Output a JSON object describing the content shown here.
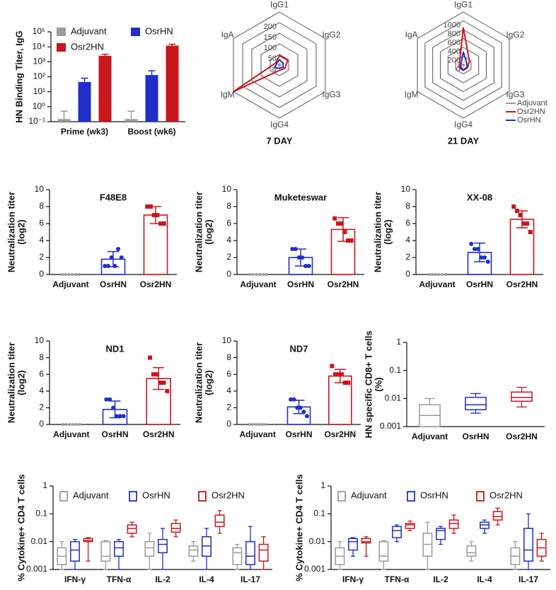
{
  "chart_data": [
    {
      "type": "bar",
      "log_scale": true,
      "ylabel": [
        "HN Binding Titer, IgG"
      ],
      "categories": [
        "Prime (wk3)",
        "Boost (wk6)"
      ],
      "legend": "upper left",
      "series": [
        {
          "name": "Adjuvant",
          "color": "#9a9a9a",
          "values": [
            0.15,
            0.15
          ],
          "errors": [
            0.35,
            0.35
          ]
        },
        {
          "name": "OsrHN",
          "color": "#1f2fc7",
          "values": [
            45,
            130
          ],
          "errors": [
            35,
            120
          ]
        },
        {
          "name": "Osr2HN",
          "color": "#c8161d",
          "values": [
            2500,
            12000
          ],
          "errors": [
            700,
            3000
          ]
        }
      ],
      "ylim": [
        0.1,
        100000
      ],
      "yticks": [
        {
          "value": 0.1,
          "label": "10⁻¹"
        },
        {
          "value": 1,
          "label": "10⁰"
        },
        {
          "value": 10,
          "label": "10¹"
        },
        {
          "value": 100,
          "label": "10²"
        },
        {
          "value": 1000,
          "label": "10³"
        },
        {
          "value": 10000,
          "label": "10⁴"
        },
        {
          "value": 100000,
          "label": "10⁵"
        }
      ]
    },
    {
      "type": "radar",
      "title": "7 DAY",
      "axes": [
        "IgG1",
        "IgG2",
        "IgG3",
        "IgG4",
        "IgM",
        "IgA"
      ],
      "rlim": [
        0,
        250
      ],
      "rticks": [
        0,
        50,
        100,
        150,
        200
      ],
      "series": [
        {
          "name": "Adjuvant",
          "color": "#9a9a9a",
          "values": [
            5,
            5,
            5,
            5,
            5,
            5
          ]
        },
        {
          "name": "Osr2HN",
          "color": "#c8161d",
          "values": [
            45,
            45,
            30,
            25,
            250,
            20
          ]
        },
        {
          "name": "OsrHN",
          "color": "#1f2fc7",
          "values": [
            25,
            20,
            20,
            15,
            25,
            15
          ]
        }
      ]
    },
    {
      "type": "radar",
      "title": "21 DAY",
      "axes": [
        "IgG1",
        "IgG2",
        "IgG3",
        "IgG4",
        "IgM",
        "IgA"
      ],
      "rlim": [
        0,
        1200
      ],
      "rticks": [
        0,
        200,
        400,
        600,
        800,
        1000
      ],
      "legend": "lower right",
      "series": [
        {
          "name": "Adjuvant",
          "color": "#9a9a9a",
          "values": [
            20,
            20,
            20,
            20,
            20,
            20
          ]
        },
        {
          "name": "Osr2HN",
          "color": "#c8161d",
          "values": [
            850,
            160,
            110,
            120,
            110,
            100
          ]
        },
        {
          "name": "OsrHN",
          "color": "#1f2fc7",
          "values": [
            300,
            90,
            100,
            110,
            70,
            60
          ]
        }
      ]
    },
    {
      "type": "bar_dots",
      "title": "F48E8",
      "ylabel": [
        "Neutralization titer",
        "(log2)"
      ],
      "categories": [
        "Adjuvant",
        "OsrHN",
        "Osr2HN"
      ],
      "colors": [
        "#9a9a9a",
        "#1f2fc7",
        "#c8161d"
      ],
      "markers": [
        "circle",
        "circle",
        "square"
      ],
      "values": [
        0,
        1.8,
        7
      ],
      "errors": [
        0,
        0.9,
        1
      ],
      "points": [
        [
          0,
          0,
          0,
          0,
          0,
          0
        ],
        [
          1,
          1,
          2,
          1,
          3,
          2
        ],
        [
          8,
          8,
          7,
          7,
          6,
          6
        ]
      ],
      "ylim": [
        0,
        10
      ],
      "yticks": [
        0,
        2,
        4,
        6,
        8,
        10
      ]
    },
    {
      "type": "bar_dots",
      "title": "Muketeswar",
      "ylabel": [
        "Neutralization titer",
        "(log2)"
      ],
      "categories": [
        "Adjuvant",
        "OsrHN",
        "Osr2HN"
      ],
      "colors": [
        "#9a9a9a",
        "#1f2fc7",
        "#c8161d"
      ],
      "markers": [
        "circle",
        "circle",
        "square"
      ],
      "values": [
        0,
        2,
        5.3
      ],
      "errors": [
        0,
        1,
        1.4
      ],
      "points": [
        [
          0,
          0,
          0,
          0,
          0,
          0
        ],
        [
          3,
          3,
          2,
          2,
          1,
          1
        ],
        [
          6.6,
          6,
          6,
          5,
          4,
          4
        ]
      ],
      "ylim": [
        0,
        10
      ],
      "yticks": [
        0,
        2,
        4,
        6,
        8,
        10
      ]
    },
    {
      "type": "bar_dots",
      "title": "XX-08",
      "ylabel": [
        "Neutralization titer",
        "(log2)"
      ],
      "categories": [
        "Adjuvant",
        "OsrHN",
        "Osr2HN"
      ],
      "colors": [
        "#9a9a9a",
        "#1f2fc7",
        "#c8161d"
      ],
      "markers": [
        "circle",
        "circle",
        "square"
      ],
      "values": [
        0,
        2.6,
        6.5
      ],
      "errors": [
        0,
        1.1,
        1
      ],
      "points": [
        [
          0,
          0,
          0,
          0,
          0,
          0
        ],
        [
          3.6,
          3,
          3,
          2,
          2,
          1.5
        ],
        [
          8,
          7.5,
          7,
          6,
          6,
          5
        ]
      ],
      "ylim": [
        0,
        10
      ],
      "yticks": [
        0,
        2,
        4,
        6,
        8,
        10
      ]
    },
    {
      "type": "bar_dots",
      "title": "ND1",
      "ylabel": [
        "Neutralization titer",
        "(log2)"
      ],
      "categories": [
        "Adjuvant",
        "OsrHN",
        "Osr2HN"
      ],
      "colors": [
        "#9a9a9a",
        "#1f2fc7",
        "#c8161d"
      ],
      "markers": [
        "circle",
        "circle",
        "square"
      ],
      "values": [
        0,
        1.8,
        5.5
      ],
      "errors": [
        0,
        1,
        1.3
      ],
      "points": [
        [
          0,
          0,
          0,
          0,
          0,
          0
        ],
        [
          3,
          3,
          2,
          1,
          1,
          1
        ],
        [
          8,
          6,
          6,
          5,
          5,
          4
        ]
      ],
      "ylim": [
        0,
        10
      ],
      "yticks": [
        0,
        2,
        4,
        6,
        8,
        10
      ]
    },
    {
      "type": "bar_dots",
      "title": "ND7",
      "ylabel": [
        "Neutralization titer",
        "(log2)"
      ],
      "categories": [
        "Adjuvant",
        "OsrHN",
        "Osr2HN"
      ],
      "colors": [
        "#9a9a9a",
        "#1f2fc7",
        "#c8161d"
      ],
      "markers": [
        "circle",
        "circle",
        "square"
      ],
      "values": [
        0,
        2.1,
        5.8
      ],
      "errors": [
        0,
        0.8,
        0.8
      ],
      "points": [
        [
          0,
          0,
          0,
          0,
          0,
          0
        ],
        [
          3,
          3,
          2,
          2,
          1.5,
          1
        ],
        [
          7,
          6,
          6,
          6,
          5,
          5
        ]
      ],
      "ylim": [
        0,
        10
      ],
      "yticks": [
        0,
        2,
        4,
        6,
        8,
        10
      ]
    },
    {
      "type": "box",
      "log_scale": true,
      "ylabel": [
        "HN specific CD8+ T cells",
        "(%)"
      ],
      "categories": [
        "Adjuvant",
        "OsrHN",
        "Osr2HN"
      ],
      "colors": [
        "#9a9a9a",
        "#1f2fc7",
        "#c8161d"
      ],
      "boxes": [
        {
          "min": 0.001,
          "q1": 0.001,
          "median": 0.0025,
          "q3": 0.006,
          "max": 0.01
        },
        {
          "min": 0.003,
          "q1": 0.004,
          "median": 0.006,
          "q3": 0.011,
          "max": 0.015
        },
        {
          "min": 0.005,
          "q1": 0.008,
          "median": 0.011,
          "q3": 0.017,
          "max": 0.025
        }
      ],
      "ylim": [
        0.001,
        1
      ],
      "yticks": [
        0.001,
        0.01,
        0.1,
        1
      ]
    },
    {
      "type": "grouped_box",
      "log_scale": true,
      "ylabel": [
        "% Cytokine+ CD4 T cells"
      ],
      "categories": [
        "IFN-γ",
        "TFN-α",
        "IL-2",
        "IL-4",
        "IL-17"
      ],
      "legend": "top",
      "series": [
        {
          "name": "Adjuvant",
          "color": "#9a9a9a",
          "boxes": [
            {
              "min": 0.001,
              "q1": 0.0015,
              "median": 0.003,
              "q3": 0.006,
              "max": 0.01
            },
            {
              "min": 0.001,
              "q1": 0.002,
              "median": 0.003,
              "q3": 0.01,
              "max": 0.011
            },
            {
              "min": 0.001,
              "q1": 0.003,
              "median": 0.006,
              "q3": 0.01,
              "max": 0.02
            },
            {
              "min": 0.002,
              "q1": 0.003,
              "median": 0.005,
              "q3": 0.007,
              "max": 0.01
            },
            {
              "min": 0.001,
              "q1": 0.0015,
              "median": 0.004,
              "q3": 0.006,
              "max": 0.008
            }
          ]
        },
        {
          "name": "OsrHN",
          "color": "#1f2fc7",
          "boxes": [
            {
              "min": 0.001,
              "q1": 0.002,
              "median": 0.005,
              "q3": 0.01,
              "max": 0.012
            },
            {
              "min": 0.001,
              "q1": 0.003,
              "median": 0.006,
              "q3": 0.01,
              "max": 0.012
            },
            {
              "min": 0.001,
              "q1": 0.004,
              "median": 0.008,
              "q3": 0.012,
              "max": 0.03
            },
            {
              "min": 0.001,
              "q1": 0.003,
              "median": 0.007,
              "q3": 0.015,
              "max": 0.03
            },
            {
              "min": 0.001,
              "q1": 0.0015,
              "median": 0.003,
              "q3": 0.01,
              "max": 0.035
            }
          ]
        },
        {
          "name": "Osr2HN",
          "color": "#c8161d",
          "boxes": [
            {
              "min": 0.002,
              "q1": 0.01,
              "median": 0.011,
              "q3": 0.013,
              "max": 0.014
            },
            {
              "min": 0.015,
              "q1": 0.02,
              "median": 0.03,
              "q3": 0.04,
              "max": 0.05
            },
            {
              "min": 0.015,
              "q1": 0.022,
              "median": 0.03,
              "q3": 0.045,
              "max": 0.06
            },
            {
              "min": 0.02,
              "q1": 0.035,
              "median": 0.05,
              "q3": 0.09,
              "max": 0.13
            },
            {
              "min": 0.001,
              "q1": 0.002,
              "median": 0.005,
              "q3": 0.008,
              "max": 0.015
            }
          ]
        }
      ],
      "ylim": [
        0.001,
        1
      ],
      "yticks": [
        0.001,
        0.01,
        0.1,
        1
      ]
    },
    {
      "type": "grouped_box",
      "log_scale": true,
      "ylabel": [
        "% Cytokine+ CD4 T cells"
      ],
      "categories": [
        "IFN-γ",
        "TFN-α",
        "IL-2",
        "IL-4",
        "IL-17"
      ],
      "legend": "top",
      "series": [
        {
          "name": "Adjuvant",
          "color": "#9a9a9a",
          "boxes": [
            {
              "min": 0.001,
              "q1": 0.0015,
              "median": 0.003,
              "q3": 0.006,
              "max": 0.01
            },
            {
              "min": 0.001,
              "q1": 0.002,
              "median": 0.003,
              "q3": 0.01,
              "max": 0.011
            },
            {
              "min": 0.001,
              "q1": 0.003,
              "median": 0.008,
              "q3": 0.02,
              "max": 0.05
            },
            {
              "min": 0.002,
              "q1": 0.003,
              "median": 0.004,
              "q3": 0.007,
              "max": 0.01
            },
            {
              "min": 0.001,
              "q1": 0.0015,
              "median": 0.003,
              "q3": 0.006,
              "max": 0.01
            }
          ]
        },
        {
          "name": "OsrHN",
          "color": "#1f2fc7",
          "boxes": [
            {
              "min": 0.003,
              "q1": 0.005,
              "median": 0.01,
              "q3": 0.013,
              "max": 0.014
            },
            {
              "min": 0.01,
              "q1": 0.014,
              "median": 0.025,
              "q3": 0.035,
              "max": 0.04
            },
            {
              "min": 0.008,
              "q1": 0.012,
              "median": 0.025,
              "q3": 0.03,
              "max": 0.035
            },
            {
              "min": 0.02,
              "q1": 0.03,
              "median": 0.04,
              "q3": 0.05,
              "max": 0.06
            },
            {
              "min": 0.001,
              "q1": 0.002,
              "median": 0.005,
              "q3": 0.03,
              "max": 0.1
            }
          ]
        },
        {
          "name": "Osr2HN",
          "color": "#c8161d",
          "boxes": [
            {
              "min": 0.003,
              "q1": 0.009,
              "median": 0.01,
              "q3": 0.013,
              "max": 0.015
            },
            {
              "min": 0.025,
              "q1": 0.03,
              "median": 0.04,
              "q3": 0.045,
              "max": 0.055
            },
            {
              "min": 0.02,
              "q1": 0.03,
              "median": 0.045,
              "q3": 0.06,
              "max": 0.09
            },
            {
              "min": 0.04,
              "q1": 0.06,
              "median": 0.08,
              "q3": 0.12,
              "max": 0.16
            },
            {
              "min": 0.002,
              "q1": 0.003,
              "median": 0.006,
              "q3": 0.012,
              "max": 0.02
            }
          ]
        }
      ],
      "ylim": [
        0.001,
        1
      ],
      "yticks": [
        0.001,
        0.01,
        0.1,
        1
      ]
    }
  ]
}
